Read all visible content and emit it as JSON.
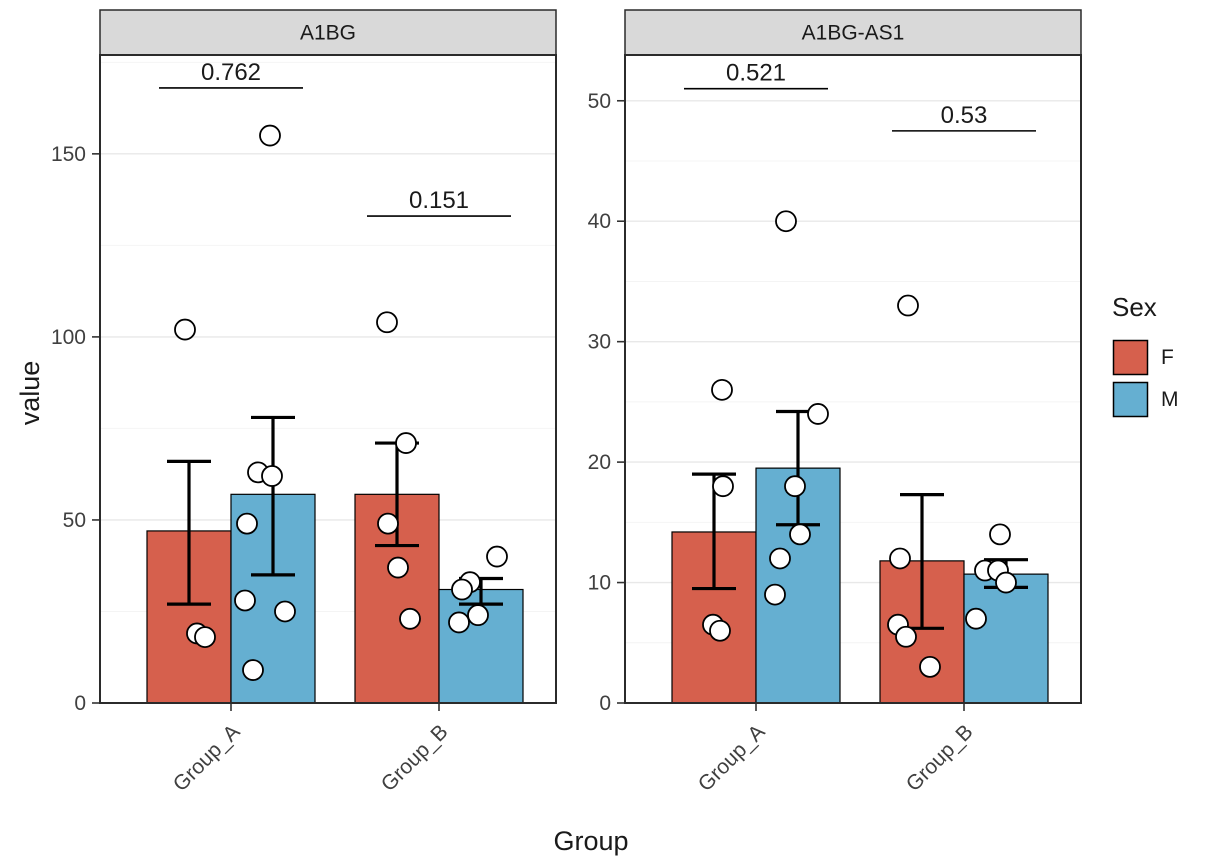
{
  "chart_data": {
    "type": "bar",
    "title": "",
    "xlabel": "Group",
    "ylabel": "value",
    "grid": "major-light",
    "legend": {
      "title": "Sex",
      "position": "right",
      "entries": [
        {
          "label": "F",
          "color": "#D6604D"
        },
        {
          "label": "M",
          "color": "#65AFD1"
        }
      ]
    },
    "point_style": {
      "fill": "#FFFFFF",
      "stroke": "#000000"
    },
    "strip_bg": "#D9D9D9",
    "categories": [
      "Group_A",
      "Group_B"
    ],
    "facets": [
      {
        "label": "A1BG",
        "ylim": [
          0,
          177
        ],
        "yticks": [
          0,
          50,
          100,
          150
        ],
        "groups": [
          {
            "category": "Group_A",
            "pvalue": "0.762",
            "pvalue_line_y": 168,
            "bars": [
              {
                "sex": "F",
                "mean": 47,
                "err_low": 27,
                "err_high": 66,
                "points": [
                  {
                    "v": 102,
                    "dx": -46
                  },
                  {
                    "v": 49,
                    "dx": 16
                  },
                  {
                    "v": 19,
                    "dx": -34
                  },
                  {
                    "v": 18,
                    "dx": -26
                  }
                ]
              },
              {
                "sex": "M",
                "mean": 57,
                "err_low": 35,
                "err_high": 78,
                "points": [
                  {
                    "v": 155,
                    "dx": 39
                  },
                  {
                    "v": 63,
                    "dx": 27
                  },
                  {
                    "v": 62,
                    "dx": 41
                  },
                  {
                    "v": 28,
                    "dx": 14
                  },
                  {
                    "v": 25,
                    "dx": 54
                  },
                  {
                    "v": 9,
                    "dx": 22
                  }
                ]
              }
            ]
          },
          {
            "category": "Group_B",
            "pvalue": "0.151",
            "pvalue_line_y": 133,
            "bars": [
              {
                "sex": "F",
                "mean": 57,
                "err_low": 43,
                "err_high": 71,
                "points": [
                  {
                    "v": 104,
                    "dx": -52
                  },
                  {
                    "v": 71,
                    "dx": -33
                  },
                  {
                    "v": 49,
                    "dx": -51
                  },
                  {
                    "v": 37,
                    "dx": -41
                  },
                  {
                    "v": 23,
                    "dx": -29
                  }
                ]
              },
              {
                "sex": "M",
                "mean": 31,
                "err_low": 27,
                "err_high": 34,
                "points": [
                  {
                    "v": 40,
                    "dx": 58
                  },
                  {
                    "v": 33,
                    "dx": 31
                  },
                  {
                    "v": 31,
                    "dx": 23
                  },
                  {
                    "v": 24,
                    "dx": 39
                  },
                  {
                    "v": 22,
                    "dx": 20
                  }
                ]
              }
            ]
          }
        ]
      },
      {
        "label": "A1BG-AS1",
        "ylim": [
          0,
          53.8
        ],
        "yticks": [
          0,
          10,
          20,
          30,
          40,
          50
        ],
        "groups": [
          {
            "category": "Group_A",
            "pvalue": "0.521",
            "pvalue_line_y": 51,
            "bars": [
              {
                "sex": "F",
                "mean": 14.2,
                "err_low": 9.5,
                "err_high": 19,
                "points": [
                  {
                    "v": 26,
                    "dx": -34
                  },
                  {
                    "v": 18,
                    "dx": -33
                  },
                  {
                    "v": 6.5,
                    "dx": -43
                  },
                  {
                    "v": 6,
                    "dx": -36
                  }
                ]
              },
              {
                "sex": "M",
                "mean": 19.5,
                "err_low": 14.8,
                "err_high": 24.2,
                "points": [
                  {
                    "v": 40,
                    "dx": 30
                  },
                  {
                    "v": 24,
                    "dx": 62
                  },
                  {
                    "v": 18,
                    "dx": 39
                  },
                  {
                    "v": 14,
                    "dx": 44
                  },
                  {
                    "v": 12,
                    "dx": 24
                  },
                  {
                    "v": 9,
                    "dx": 19
                  }
                ]
              }
            ]
          },
          {
            "category": "Group_B",
            "pvalue": "0.53",
            "pvalue_line_y": 47.5,
            "bars": [
              {
                "sex": "F",
                "mean": 11.8,
                "err_low": 6.2,
                "err_high": 17.3,
                "points": [
                  {
                    "v": 33,
                    "dx": -56
                  },
                  {
                    "v": 12,
                    "dx": -64
                  },
                  {
                    "v": 6.5,
                    "dx": -66
                  },
                  {
                    "v": 5.5,
                    "dx": -58
                  },
                  {
                    "v": 3,
                    "dx": -34
                  }
                ]
              },
              {
                "sex": "M",
                "mean": 10.7,
                "err_low": 9.6,
                "err_high": 11.9,
                "points": [
                  {
                    "v": 14,
                    "dx": 36
                  },
                  {
                    "v": 11,
                    "dx": 21
                  },
                  {
                    "v": 11,
                    "dx": 34
                  },
                  {
                    "v": 10,
                    "dx": 42
                  },
                  {
                    "v": 7,
                    "dx": 12
                  }
                ]
              }
            ]
          }
        ]
      }
    ]
  }
}
